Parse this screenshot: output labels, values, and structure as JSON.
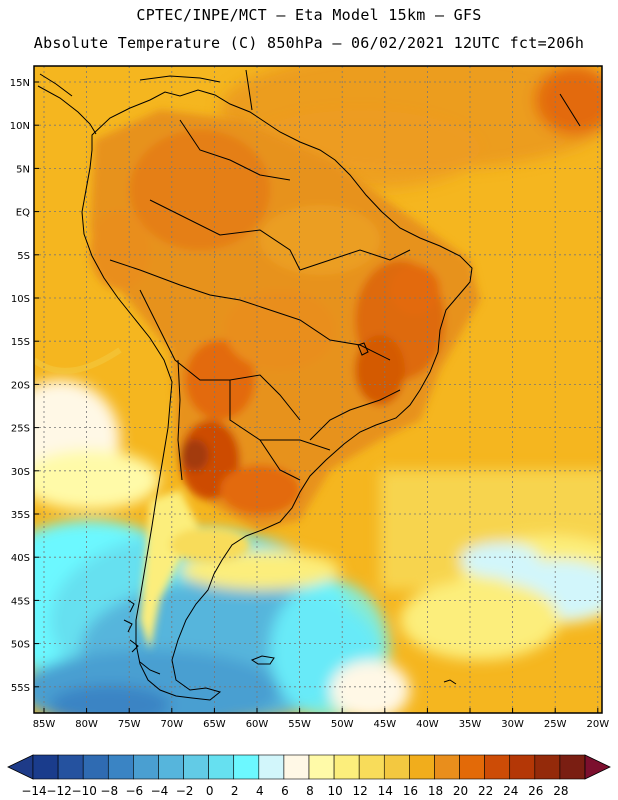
{
  "header": {
    "line1": "CPTEC/INPE/MCT –  Eta Model 15km – GFS",
    "line2": "Absolute Temperature (C) 850hPa – 06/02/2021 12UTC fct=206h"
  },
  "axes": {
    "lat_labels": [
      "15N",
      "10N",
      "5N",
      "EQ",
      "5S",
      "10S",
      "15S",
      "20S",
      "25S",
      "30S",
      "35S",
      "40S",
      "45S",
      "50S",
      "55S"
    ],
    "lon_labels": [
      "85W",
      "80W",
      "75W",
      "70W",
      "65W",
      "60W",
      "55W",
      "50W",
      "45W",
      "40W",
      "35W",
      "30W",
      "25W",
      "20W"
    ]
  },
  "colorbar": {
    "labels": [
      "-14",
      "-12",
      "-10",
      "-8",
      "-6",
      "-4",
      "-2",
      "0",
      "2",
      "4",
      "6",
      "8",
      "10",
      "12",
      "14",
      "16",
      "18",
      "20",
      "22",
      "24",
      "26",
      "28"
    ],
    "colors": [
      "#1a3c8c",
      "#25529f",
      "#2f6bb2",
      "#3a84c4",
      "#4a9fd1",
      "#56b5dc",
      "#62cbe6",
      "#66e0f0",
      "#6cf8ff",
      "#d2f6fb",
      "#fff8e6",
      "#fffaa8",
      "#fcee7c",
      "#f8dc5a",
      "#f3c840",
      "#f1ad1c",
      "#e98e1c",
      "#e36a08",
      "#cd4c06",
      "#b43706",
      "#942a0a",
      "#7a1e12"
    ],
    "under_color": "#1e3b88",
    "over_color": "#7c0f2e"
  }
}
